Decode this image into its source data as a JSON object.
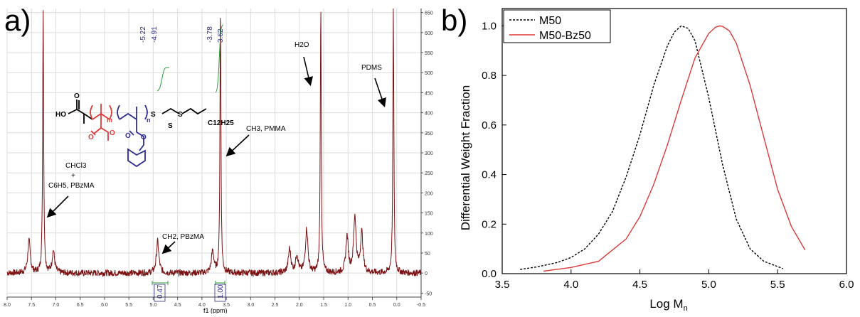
{
  "chart_data": [
    {
      "type": "line",
      "panel_label": "a)",
      "xlabel": "f1 (ppm)",
      "x_ticks": [
        "8.0",
        "7.5",
        "7.0",
        "6.5",
        "6.0",
        "5.5",
        "5.0",
        "4.5",
        "4.0",
        "3.5",
        "3.0",
        "2.5",
        "2.0",
        "1.5",
        "1.0",
        "0.5",
        "0.0",
        "-0.5"
      ],
      "y_ticks": [
        "650",
        "600",
        "550",
        "500",
        "450",
        "400",
        "350",
        "300",
        "250",
        "200",
        "150",
        "100",
        "50",
        "0",
        "-50"
      ],
      "xlim": [
        8.0,
        -0.5
      ],
      "ylim": [
        -60,
        660
      ],
      "axis_orientation": "x decreasing left to right; y axis on right",
      "peak_labels": [
        "-5.22",
        "-4.91",
        "-3.78",
        "3.62"
      ],
      "integrals": [
        "0.47",
        "1.00"
      ],
      "annotations": {
        "h2o": "H2O",
        "pdms": "PDMS",
        "pmma": "CH3, PMMA",
        "pbzma_ch2": "CH2, PBzMA",
        "chcl3_line1": "CHCl3",
        "chcl3_line2": "+",
        "chcl3_line3": "C6H5, PBzMA"
      },
      "structure_labels": {
        "ho": "HO",
        "o_top": "O",
        "s1": "S",
        "s2": "S",
        "s3": "S",
        "alkyl": "C12H25",
        "m": "m",
        "n": "n",
        "ester_o1": "O",
        "ester_o2": "O",
        "ester_o3": "O",
        "ester_o4": "O"
      },
      "peaks": [
        {
          "ppm": 7.26,
          "height": 660
        },
        {
          "ppm": 3.62,
          "height": 660
        },
        {
          "ppm": 1.56,
          "height": 660
        },
        {
          "ppm": 0.07,
          "height": 660
        },
        {
          "ppm": 7.55,
          "height": 80
        },
        {
          "ppm": 7.05,
          "height": 55
        },
        {
          "ppm": 4.91,
          "height": 80
        },
        {
          "ppm": 3.78,
          "height": 55
        },
        {
          "ppm": 2.2,
          "height": 60
        },
        {
          "ppm": 2.05,
          "height": 45
        },
        {
          "ppm": 1.85,
          "height": 110
        },
        {
          "ppm": 1.02,
          "height": 90
        },
        {
          "ppm": 0.86,
          "height": 140
        },
        {
          "ppm": 0.72,
          "height": 100
        }
      ],
      "colors": {
        "spectrum": "#7b1113",
        "peak_labels": "#2d2d8c",
        "integral_curve": "#2e9d3a"
      }
    },
    {
      "type": "line",
      "panel_label": "b)",
      "xlabel": "Log M",
      "xlabel_subscript": "n",
      "ylabel": "Differential Weight Fraction",
      "x_ticks": [
        "3.5",
        "4.0",
        "4.5",
        "5.0",
        "5.5",
        "6.0"
      ],
      "y_ticks": [
        "0.0",
        "0.2",
        "0.4",
        "0.6",
        "0.8",
        "1.0"
      ],
      "xlim": [
        3.5,
        6.0
      ],
      "ylim": [
        0.0,
        1.07
      ],
      "legend_position": "top-left",
      "series": [
        {
          "name": "M50",
          "color": "#000000",
          "style": "dashed",
          "x": [
            3.63,
            3.75,
            3.9,
            4.0,
            4.1,
            4.2,
            4.3,
            4.4,
            4.5,
            4.6,
            4.7,
            4.75,
            4.8,
            4.85,
            4.9,
            5.0,
            5.1,
            5.2,
            5.3,
            5.4,
            5.54
          ],
          "y": [
            0.017,
            0.027,
            0.045,
            0.065,
            0.1,
            0.16,
            0.25,
            0.39,
            0.56,
            0.76,
            0.92,
            0.975,
            1.0,
            0.99,
            0.94,
            0.71,
            0.44,
            0.22,
            0.1,
            0.05,
            0.02
          ]
        },
        {
          "name": "M50-Bz50",
          "color": "#e03a3a",
          "style": "solid",
          "x": [
            3.8,
            4.0,
            4.2,
            4.4,
            4.5,
            4.6,
            4.7,
            4.8,
            4.9,
            5.0,
            5.05,
            5.08,
            5.1,
            5.15,
            5.2,
            5.3,
            5.4,
            5.5,
            5.6,
            5.7
          ],
          "y": [
            0.01,
            0.025,
            0.05,
            0.14,
            0.23,
            0.36,
            0.52,
            0.7,
            0.87,
            0.97,
            0.995,
            1.0,
            0.998,
            0.98,
            0.93,
            0.76,
            0.55,
            0.34,
            0.19,
            0.095
          ]
        }
      ]
    }
  ]
}
